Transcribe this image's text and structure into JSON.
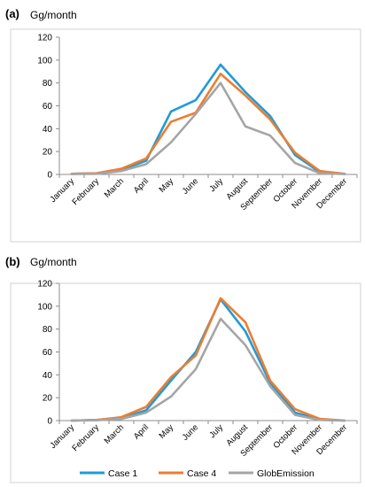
{
  "colors": {
    "case1": "#1f9bd7",
    "case4": "#ed7d31",
    "glob": "#a5a5a5",
    "axis": "#8c8c8c",
    "frame": "#d0d0d0"
  },
  "legend": {
    "entries": [
      "Case 1",
      "Case 4",
      "GlobEmission"
    ],
    "placement": "bottom"
  },
  "chart_data": [
    {
      "type": "line",
      "panel_label": "(a)",
      "unit_label": "Gg/month",
      "categories": [
        "January",
        "February",
        "March",
        "April",
        "May",
        "June",
        "July",
        "August",
        "September",
        "October",
        "November",
        "December"
      ],
      "yticks": [
        "0",
        "20",
        "40",
        "60",
        "80",
        "100",
        "120"
      ],
      "ylim": [
        0,
        120
      ],
      "grid": false,
      "series": [
        {
          "name": "Case 1",
          "values": [
            0.5,
            1,
            4,
            12,
            55,
            65,
            96,
            72,
            51,
            17,
            2,
            0.5
          ]
        },
        {
          "name": "Case 4",
          "values": [
            0.5,
            1,
            5,
            14,
            46,
            54,
            88,
            69,
            48,
            19,
            3,
            0.5
          ]
        },
        {
          "name": "GlobEmission",
          "values": [
            0.3,
            0.5,
            3,
            9,
            28,
            53,
            80,
            42,
            34,
            10,
            1,
            0.3
          ]
        }
      ]
    },
    {
      "type": "line",
      "panel_label": "(b)",
      "unit_label": "Gg/month",
      "categories": [
        "January",
        "February",
        "March",
        "April",
        "May",
        "June",
        "July",
        "August",
        "September",
        "October",
        "November",
        "December"
      ],
      "yticks": [
        "0",
        "20",
        "40",
        "60",
        "80",
        "100",
        "120"
      ],
      "ylim": [
        0,
        120
      ],
      "grid": false,
      "series": [
        {
          "name": "Case 1",
          "values": [
            0,
            0.5,
            2,
            9,
            35,
            60,
            106,
            78,
            33,
            7,
            1,
            0
          ]
        },
        {
          "name": "Case 4",
          "values": [
            0,
            0.5,
            3,
            12,
            38,
            57,
            107,
            86,
            35,
            10,
            1.5,
            0
          ]
        },
        {
          "name": "GlobEmission",
          "values": [
            0,
            0.3,
            1.5,
            7,
            21,
            45,
            89,
            66,
            30,
            5,
            0.5,
            0
          ]
        }
      ]
    }
  ]
}
